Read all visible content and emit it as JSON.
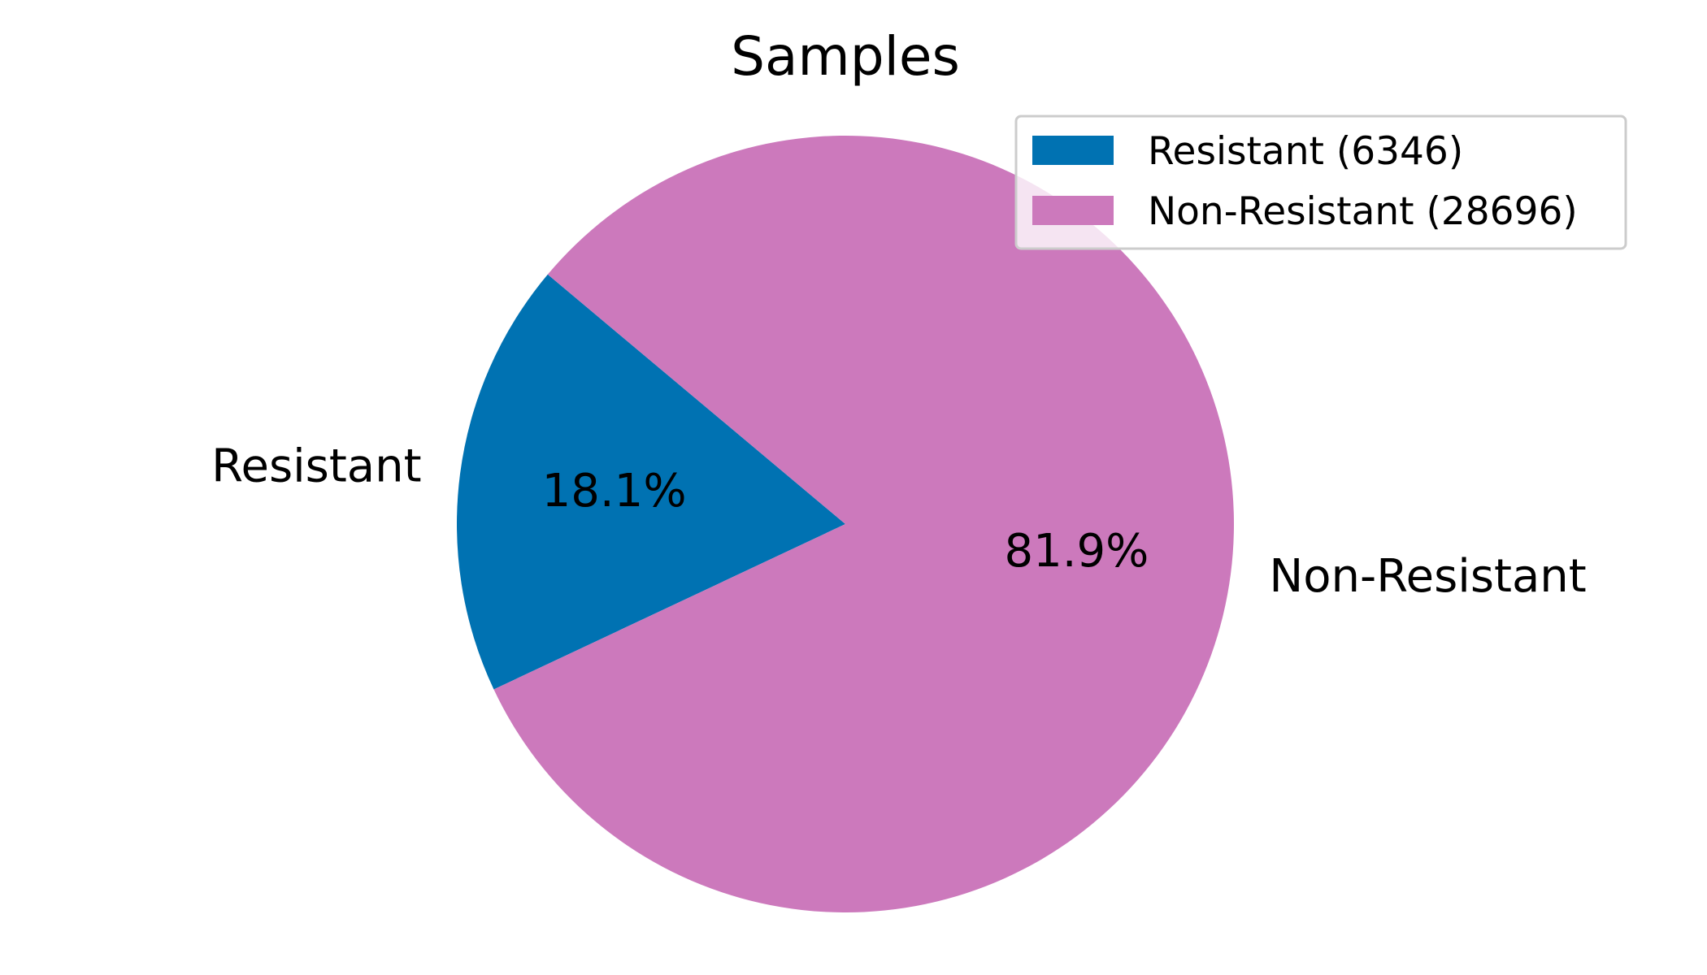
{
  "chart_data": {
    "type": "pie",
    "title": "Samples",
    "categories": [
      "Resistant",
      "Non-Resistant"
    ],
    "values": [
      6346,
      28696
    ],
    "percent_labels": [
      "18.1%",
      "81.9%"
    ],
    "legend_labels": [
      "Resistant (6346)",
      "Non-Resistant (28696)"
    ],
    "colors": [
      "#0072B2",
      "#CC79BC"
    ],
    "legend_position": "upper right",
    "start_angle_deg": 140,
    "direction": "counterclockwise"
  }
}
